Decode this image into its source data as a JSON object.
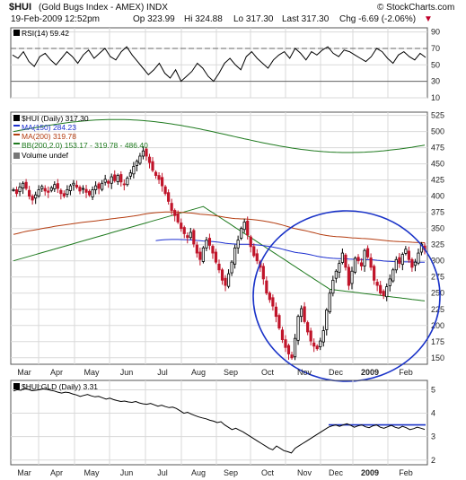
{
  "header": {
    "title_symbol": "$HUI",
    "title_desc": "(Gold Bugs Index - AMEX) INDX",
    "watermark": "© StockCharts.com",
    "date": "19-Feb-2009 12:52pm",
    "open": "Op 323.99",
    "high": "Hi 324.88",
    "low": "Lo 317.30",
    "last": "Last 317.30",
    "change": "Chg -6.69 (-2.06%)",
    "change_arrow": "▼"
  },
  "chart_data": [
    {
      "type": "line",
      "panel": "rsi",
      "legend": [
        "RSI(14) 59.42"
      ],
      "ylim": [
        10,
        95
      ],
      "yticks": [
        90,
        70,
        50,
        30,
        10
      ],
      "ref_lines": [
        70,
        30
      ],
      "series": [
        {
          "name": "RSI(14) 59.42",
          "color": "#000000",
          "values": [
            62,
            58,
            66,
            54,
            48,
            60,
            64,
            56,
            50,
            58,
            66,
            60,
            52,
            62,
            68,
            58,
            64,
            70,
            60,
            56,
            66,
            72,
            62,
            54,
            46,
            38,
            44,
            52,
            40,
            34,
            44,
            30,
            36,
            42,
            52,
            46,
            36,
            30,
            40,
            52,
            58,
            50,
            44,
            60,
            66,
            58,
            52,
            46,
            56,
            62,
            66,
            58,
            70,
            64,
            56,
            66,
            62,
            68,
            72,
            64,
            60,
            68,
            66,
            62,
            58,
            54,
            60,
            70,
            66,
            58,
            52,
            62,
            66,
            60,
            56,
            64,
            59
          ]
        }
      ]
    },
    {
      "type": "candlestick",
      "panel": "price",
      "legend": [
        "$HUI (Daily) 317.30",
        "MA(150) 284.23",
        "MA(200) 319.78",
        "BB(200,2.0) 153.17 - 319.78 - 486.40",
        "Volume undef"
      ],
      "ylim": [
        140,
        530
      ],
      "yticks": [
        525,
        500,
        475,
        450,
        425,
        400,
        375,
        350,
        325,
        300,
        275,
        250,
        225,
        200,
        175,
        150
      ],
      "x_labels": [
        "Mar",
        "Apr",
        "May",
        "Jun",
        "Jul",
        "Aug",
        "Sep",
        "Oct",
        "Nov",
        "Dec",
        "2009",
        "Feb"
      ],
      "x_label_bold": "2009",
      "prices": [
        410,
        404,
        414,
        420,
        412,
        400,
        394,
        402,
        410,
        415,
        408,
        406,
        413,
        418,
        412,
        404,
        400,
        410,
        416,
        420,
        414,
        408,
        412,
        406,
        402,
        410,
        416,
        412,
        420,
        426,
        420,
        430,
        424,
        432,
        422,
        418,
        428,
        436,
        446,
        454,
        462,
        470,
        462,
        452,
        440,
        432,
        426,
        416,
        404,
        392,
        378,
        370,
        360,
        350,
        342,
        336,
        344,
        326,
        312,
        302,
        320,
        332,
        324,
        312,
        298,
        286,
        270,
        262,
        280,
        298,
        320,
        332,
        350,
        360,
        340,
        322,
        308,
        300,
        290,
        272,
        250,
        240,
        230,
        214,
        196,
        178,
        166,
        156,
        150,
        180,
        214,
        226,
        206,
        190,
        176,
        168,
        164,
        176,
        192,
        224,
        250,
        270,
        284,
        296,
        312,
        290,
        262,
        284,
        304,
        300,
        292,
        316,
        306,
        290,
        270,
        262,
        250,
        246,
        260,
        272,
        286,
        302,
        296,
        310,
        318,
        302,
        290,
        298,
        312,
        326,
        317
      ],
      "series": [
        {
          "name": "MA(150) 284.23",
          "color": "#1c2fd0",
          "values": [
            null,
            null,
            null,
            null,
            null,
            null,
            null,
            null,
            null,
            null,
            null,
            null,
            null,
            null,
            null,
            null,
            null,
            null,
            null,
            null,
            null,
            null,
            null,
            null,
            null,
            null,
            null,
            null,
            null,
            null,
            null,
            null,
            null,
            null,
            null,
            null,
            null,
            null,
            null,
            null,
            null,
            null,
            null,
            null,
            null,
            null,
            null,
            null,
            null,
            null,
            null,
            null,
            null,
            null,
            null,
            null,
            null,
            null,
            null,
            null,
            null,
            null,
            null,
            null,
            null,
            null,
            null,
            null,
            null,
            null,
            null,
            null,
            null,
            null,
            null,
            null,
            null,
            null,
            null,
            null,
            null,
            null,
            null,
            null,
            null,
            null,
            null,
            null,
            null,
            null,
            null,
            null,
            null,
            null,
            null,
            null,
            null,
            null,
            null,
            null,
            null,
            null,
            null,
            null,
            null,
            null,
            null,
            null,
            null,
            null,
            null,
            null,
            null,
            null,
            null,
            null,
            null,
            null,
            null,
            null,
            null,
            null,
            null,
            null,
            null,
            null,
            null,
            null,
            null,
            null,
            null
          ]
        },
        {
          "name": "MA(200) 319.78",
          "color": "#b43c10",
          "values": []
        },
        {
          "name": "BB(200,2.0) 153.17 - 319.78 - 486.40",
          "color": "#1f7a1f",
          "values": []
        }
      ],
      "annotation": "circle"
    },
    {
      "type": "line",
      "panel": "ratio",
      "legend": [
        "$HUI:GLD (Daily) 3.31"
      ],
      "ylim": [
        1.8,
        5.4
      ],
      "yticks": [
        5,
        4,
        3,
        2
      ],
      "x_labels": [
        "Mar",
        "Apr",
        "May",
        "Jun",
        "Jul",
        "Aug",
        "Sep",
        "Oct",
        "Nov",
        "Dec",
        "2009",
        "Feb"
      ],
      "x_label_bold": "2009",
      "series": [
        {
          "name": "$HUI:GLD (Daily) 3.31",
          "color": "#000000",
          "values": [
            4.95,
            5.0,
            4.98,
            5.05,
            5.02,
            4.96,
            4.98,
            5.0,
            5.04,
            5.02,
            4.98,
            4.95,
            4.9,
            4.86,
            4.9,
            4.88,
            4.82,
            4.78,
            4.72,
            4.76,
            4.8,
            4.74,
            4.7,
            4.72,
            4.66,
            4.6,
            4.64,
            4.58,
            4.54,
            4.5,
            4.52,
            4.48,
            4.46,
            4.5,
            4.44,
            4.4,
            4.38,
            4.42,
            4.36,
            4.3,
            4.34,
            4.28,
            4.24,
            4.26,
            4.2,
            4.1,
            4.0,
            4.04,
            3.96,
            3.9,
            3.84,
            3.8,
            3.76,
            3.7,
            3.66,
            3.6,
            3.64,
            3.5,
            3.4,
            3.3,
            3.36,
            3.28,
            3.2,
            3.1,
            3.0,
            2.9,
            2.8,
            2.7,
            2.6,
            2.5,
            2.44,
            2.6,
            2.5,
            2.4,
            2.36,
            2.3,
            2.5,
            2.6,
            2.7,
            2.8,
            2.9,
            3.0,
            3.1,
            3.2,
            3.3,
            3.4,
            3.46,
            3.5,
            3.44,
            3.5,
            3.55,
            3.48,
            3.4,
            3.46,
            3.5,
            3.42,
            3.38,
            3.46,
            3.5,
            3.4,
            3.36,
            3.42,
            3.48,
            3.4,
            3.36,
            3.44,
            3.38,
            3.3,
            3.34,
            3.4,
            3.36,
            3.31
          ]
        }
      ],
      "ref_lines": [
        3.5
      ]
    }
  ]
}
